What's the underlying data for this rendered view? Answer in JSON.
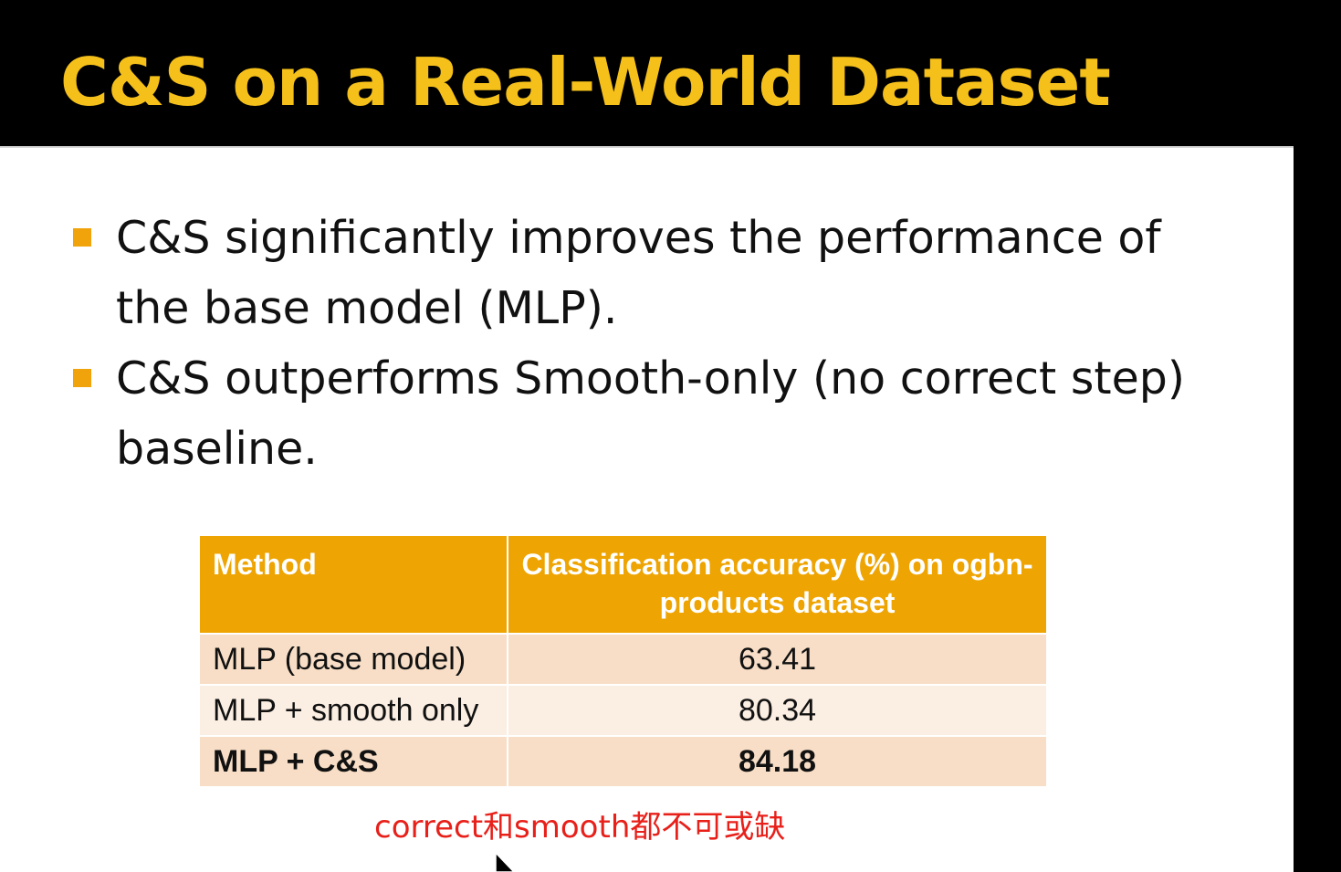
{
  "slide": {
    "title": "C&S on a Real-World Dataset",
    "bullets": [
      "C&S significantly improves the performance of the base model (MLP).",
      "C&S outperforms Smooth-only (no correct step) baseline."
    ],
    "table": {
      "headers": [
        "Method",
        "Classification accuracy (%) on ogbn-products dataset"
      ],
      "rows": [
        {
          "method": "MLP (base model)",
          "accuracy": "63.41"
        },
        {
          "method": "MLP + smooth only",
          "accuracy": "80.34"
        },
        {
          "method": "MLP + C&S",
          "accuracy": "84.18"
        }
      ]
    },
    "annotation": "correct和smooth都不可或缺"
  },
  "colors": {
    "title": "#f5c01a",
    "bullet_marker": "#f0a30a",
    "table_header": "#eea402",
    "annotation": "#e8201a"
  },
  "icons": [
    "bullet-square-icon",
    "mouse-cursor-icon"
  ]
}
